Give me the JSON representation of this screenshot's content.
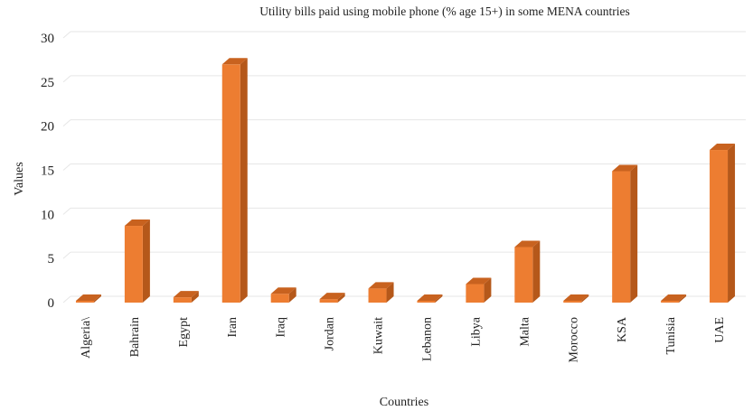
{
  "chart_data": {
    "type": "bar",
    "title": "Utility bills paid using mobile phone (% age 15+) in some MENA countries",
    "xlabel": "Countries",
    "ylabel": "Values",
    "ylim": [
      0,
      30
    ],
    "yticks": [
      0,
      5,
      10,
      15,
      20,
      25,
      30
    ],
    "grid": true,
    "style": "3d",
    "bar_color": "#ED7D31",
    "bar_side_color": "#B5581A",
    "bar_top_color": "#C8621F",
    "categories": [
      "Algeria\\",
      "Bahrain",
      "Egypt",
      "Iran",
      "Iraq",
      "Jordan",
      "Kuwait",
      "Lebanon",
      "Libya",
      "Malta",
      "Morocco",
      "KSA",
      "Tunisia",
      "UAE"
    ],
    "values": [
      0.1,
      8.7,
      0.6,
      27,
      1,
      0.4,
      1.6,
      0.1,
      2.1,
      6.3,
      0.2,
      14.9,
      0.1,
      17.3
    ]
  }
}
